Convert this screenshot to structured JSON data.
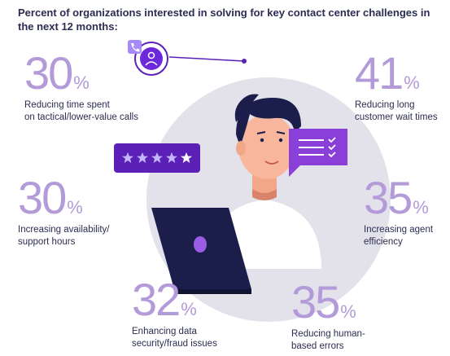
{
  "title": "Percent of organizations interested in solving for key contact center challenges in the next 12 months:",
  "chart_data": {
    "type": "infographic",
    "unit": "%",
    "items": [
      {
        "value": 30,
        "label_lines": [
          "Reducing time spent",
          "on tactical/lower-value calls"
        ]
      },
      {
        "value": 41,
        "label_lines": [
          "Reducing long",
          "customer wait times"
        ]
      },
      {
        "value": 30,
        "label_lines": [
          "Increasing availability/",
          "support hours"
        ]
      },
      {
        "value": 35,
        "label_lines": [
          "Increasing agent",
          "efficiency"
        ]
      },
      {
        "value": 32,
        "label_lines": [
          "Enhancing data",
          "security/fraud issues"
        ]
      },
      {
        "value": 35,
        "label_lines": [
          "Reducing human-",
          "based errors"
        ]
      }
    ],
    "rating_stars": 5
  },
  "colors": {
    "accent": "#b39ad9",
    "dark_purple": "#5b21b6",
    "bubble": "#8b3fd9",
    "circle": "#e3e2ea",
    "text": "#2b2d52"
  },
  "icons": {
    "badge": "user-icon",
    "phone": "phone-icon",
    "laptop": "laptop-icon",
    "chat": "chat-list-icon",
    "rating": "star-icon"
  }
}
